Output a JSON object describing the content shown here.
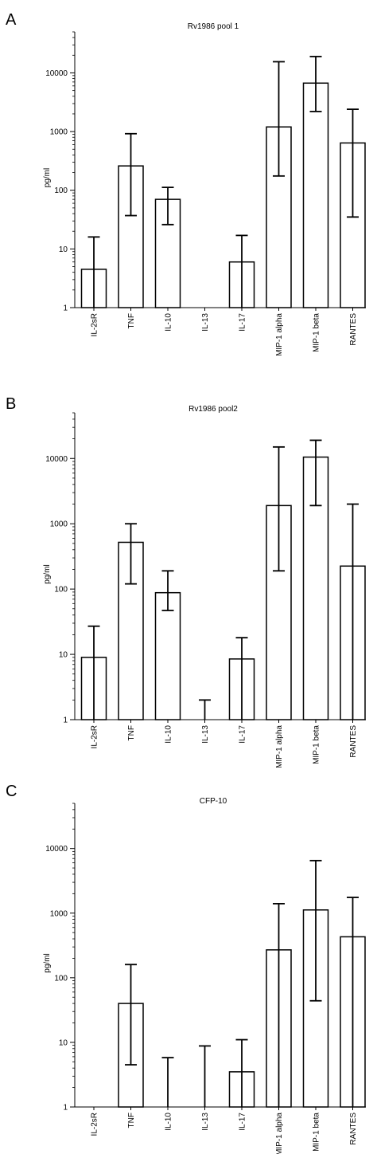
{
  "chart_data": [
    {
      "panel": "A",
      "type": "bar",
      "title": "Rv1986 pool 1",
      "ylabel": "pg/ml",
      "yscale": "log",
      "ylim": [
        1,
        50000
      ],
      "yticks": [
        "1",
        "10",
        "100",
        "1000",
        "10000"
      ],
      "categories": [
        "IL-2sR",
        "TNF",
        "IL-10",
        "IL-13",
        "IL-17",
        "MIP-1 alpha",
        "MIP-1 beta",
        "RANTES"
      ],
      "values": [
        4.5,
        260,
        70,
        null,
        6,
        1200,
        6700,
        640
      ],
      "err_low": [
        null,
        37,
        26,
        null,
        null,
        175,
        2200,
        35
      ],
      "err_high": [
        16,
        920,
        112,
        null,
        17,
        15500,
        19000,
        2400
      ]
    },
    {
      "panel": "B",
      "type": "bar",
      "title": "Rv1986 pool2",
      "ylabel": "pg/ml",
      "yscale": "log",
      "ylim": [
        1,
        50000
      ],
      "yticks": [
        "1",
        "10",
        "100",
        "1000",
        "10000"
      ],
      "categories": [
        "IL-2sR",
        "TNF",
        "IL-10",
        "IL-13",
        "IL-17",
        "MIP-1 alpha",
        "MIP-1 beta",
        "RANTES"
      ],
      "values": [
        9,
        520,
        88,
        null,
        8.5,
        1900,
        10500,
        225
      ],
      "err_low": [
        null,
        120,
        47,
        null,
        null,
        190,
        1900,
        null
      ],
      "err_high": [
        27,
        1000,
        190,
        2,
        18,
        15000,
        19000,
        2000
      ]
    },
    {
      "panel": "C",
      "type": "bar",
      "title": "CFP-10",
      "ylabel": "pg/ml",
      "yscale": "log",
      "ylim": [
        1,
        50000
      ],
      "yticks": [
        "1",
        "10",
        "100",
        "1000",
        "10000"
      ],
      "categories": [
        "IL-2sR",
        "TNF",
        "IL-10",
        "IL-13",
        "IL-17",
        "MIP-1 alpha",
        "MIP-1 beta",
        "RANTES"
      ],
      "values": [
        null,
        40,
        null,
        null,
        3.5,
        270,
        1120,
        430
      ],
      "err_low": [
        null,
        4.5,
        null,
        null,
        null,
        null,
        44,
        null
      ],
      "err_high": [
        null,
        160,
        5.8,
        8.8,
        11,
        1400,
        6500,
        1750
      ]
    }
  ]
}
